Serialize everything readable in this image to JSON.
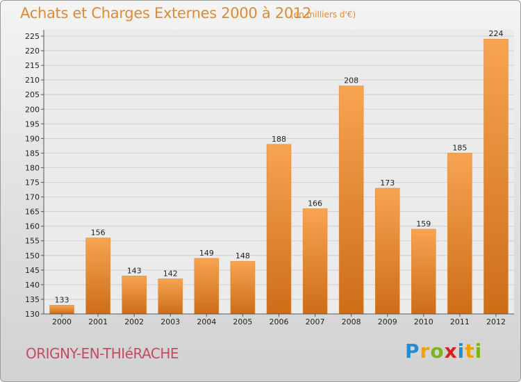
{
  "header": {
    "title": "Achats et Charges Externes 2000 à 2012",
    "unit": "(en milliers d'€)"
  },
  "footer": {
    "commune": "ORIGNY-EN-THIéRACHE",
    "logo": "Proxiti"
  },
  "colors": {
    "title": "#e08a2e",
    "commune": "#c64a64",
    "bar_top": "#f7a452",
    "bar_bottom": "#cd6d18"
  },
  "chart_data": {
    "type": "bar",
    "title": "Achats et Charges Externes 2000 à 2012",
    "subtitle": "(en milliers d'€)",
    "categories": [
      "2000",
      "2001",
      "2002",
      "2003",
      "2004",
      "2005",
      "2006",
      "2007",
      "2008",
      "2009",
      "2010",
      "2011",
      "2012"
    ],
    "values": [
      133,
      156,
      143,
      142,
      149,
      148,
      188,
      166,
      208,
      173,
      159,
      185,
      224
    ],
    "ylim": [
      130,
      225
    ],
    "yticks": [
      130,
      135,
      140,
      145,
      150,
      155,
      160,
      165,
      170,
      175,
      180,
      185,
      190,
      195,
      200,
      205,
      210,
      215,
      220,
      225
    ],
    "grid": true
  }
}
